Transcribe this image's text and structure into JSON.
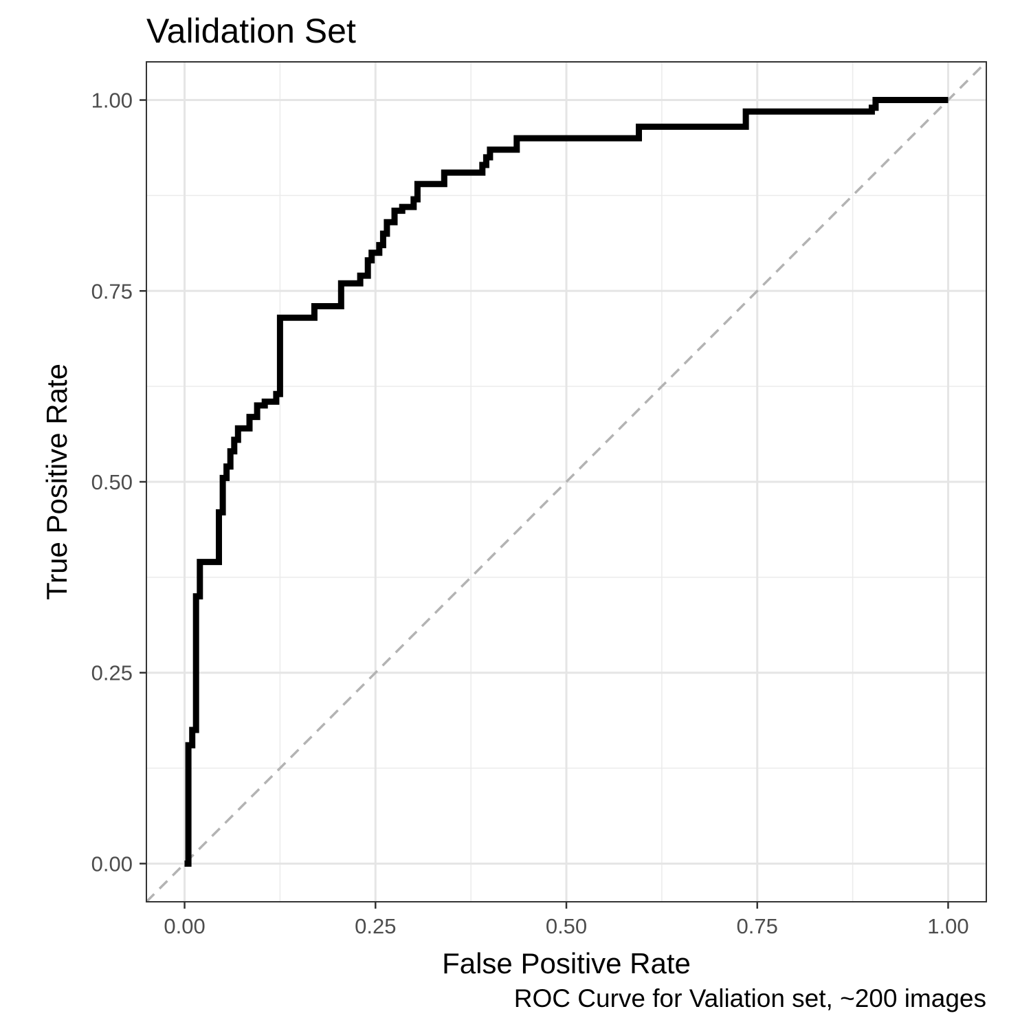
{
  "chart_data": {
    "type": "line",
    "title": "Validation Set",
    "xlabel": "False Positive Rate",
    "ylabel": "True Positive Rate",
    "caption": "ROC Curve for Valiation set, ~200 images",
    "xlim": [
      -0.05,
      1.05
    ],
    "ylim": [
      -0.05,
      1.05
    ],
    "x_ticks": [
      0,
      0.25,
      0.5,
      0.75,
      1
    ],
    "x_tick_labels": [
      "0.00",
      "0.25",
      "0.50",
      "0.75",
      "1.00"
    ],
    "y_ticks": [
      0,
      0.25,
      0.5,
      0.75,
      1
    ],
    "y_tick_labels": [
      "0.00",
      "0.25",
      "0.50",
      "0.75",
      "1.00"
    ],
    "grid": true,
    "reference_line": {
      "x": [
        0,
        1
      ],
      "y": [
        0,
        1
      ],
      "style": "dashed",
      "color": "#b3b3b3"
    },
    "series": [
      {
        "color": "#000000",
        "x": [
          0.0,
          0.005,
          0.005,
          0.01,
          0.01,
          0.015,
          0.015,
          0.02,
          0.02,
          0.045,
          0.045,
          0.05,
          0.05,
          0.055,
          0.055,
          0.06,
          0.06,
          0.065,
          0.065,
          0.07,
          0.07,
          0.085,
          0.085,
          0.095,
          0.095,
          0.105,
          0.105,
          0.12,
          0.12,
          0.125,
          0.125,
          0.17,
          0.17,
          0.205,
          0.205,
          0.23,
          0.23,
          0.24,
          0.24,
          0.245,
          0.245,
          0.255,
          0.255,
          0.26,
          0.26,
          0.265,
          0.265,
          0.275,
          0.275,
          0.285,
          0.285,
          0.3,
          0.3,
          0.305,
          0.305,
          0.34,
          0.34,
          0.39,
          0.39,
          0.395,
          0.395,
          0.4,
          0.4,
          0.435,
          0.435,
          0.595,
          0.595,
          0.735,
          0.735,
          0.9,
          0.9,
          0.905,
          0.905,
          1.0
        ],
        "y": [
          0.0,
          0.0,
          0.155,
          0.155,
          0.175,
          0.175,
          0.35,
          0.35,
          0.395,
          0.395,
          0.46,
          0.46,
          0.505,
          0.505,
          0.52,
          0.52,
          0.54,
          0.54,
          0.555,
          0.555,
          0.57,
          0.57,
          0.585,
          0.585,
          0.6,
          0.6,
          0.605,
          0.605,
          0.615,
          0.615,
          0.715,
          0.715,
          0.73,
          0.73,
          0.76,
          0.76,
          0.77,
          0.77,
          0.79,
          0.79,
          0.8,
          0.8,
          0.81,
          0.81,
          0.825,
          0.825,
          0.84,
          0.84,
          0.855,
          0.855,
          0.86,
          0.86,
          0.87,
          0.87,
          0.89,
          0.89,
          0.905,
          0.905,
          0.915,
          0.915,
          0.925,
          0.925,
          0.935,
          0.935,
          0.95,
          0.95,
          0.965,
          0.965,
          0.985,
          0.985,
          0.99,
          0.99,
          1.0,
          1.0
        ]
      }
    ]
  }
}
